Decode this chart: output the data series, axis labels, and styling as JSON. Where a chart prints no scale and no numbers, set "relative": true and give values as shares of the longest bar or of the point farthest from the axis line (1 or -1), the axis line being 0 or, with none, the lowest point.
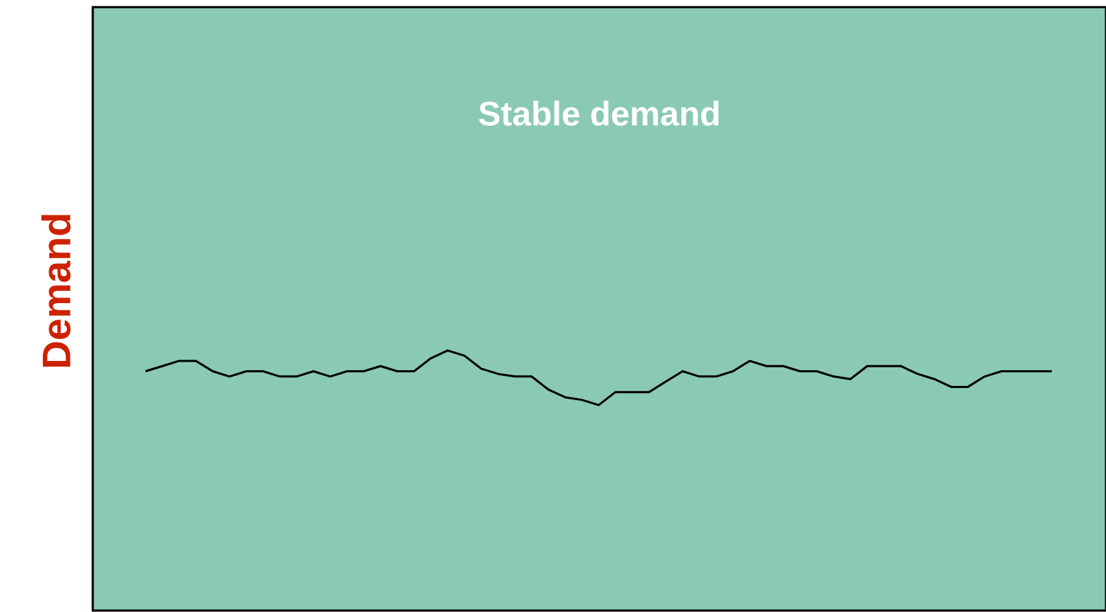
{
  "chart_data": {
    "type": "line",
    "title": "Stable demand",
    "ylabel": "Demand",
    "relative": true,
    "categories": [
      null,
      null,
      null,
      null,
      null,
      null,
      null,
      null,
      null,
      null,
      null,
      null,
      null,
      null,
      null,
      null,
      null,
      null,
      null,
      null,
      null,
      null,
      null,
      null,
      null,
      null,
      null,
      null,
      null,
      null,
      null,
      null,
      null,
      null,
      null,
      null,
      null,
      null,
      null,
      null,
      null,
      null,
      null,
      null,
      null,
      null,
      null,
      null,
      null,
      null,
      null,
      null,
      null,
      null,
      null
    ],
    "series": [
      {
        "color": "#000000",
        "values": [
          0.92,
          0.94,
          0.96,
          0.96,
          0.92,
          0.9,
          0.92,
          0.92,
          0.9,
          0.9,
          0.92,
          0.9,
          0.92,
          0.92,
          0.94,
          0.92,
          0.92,
          0.97,
          1.0,
          0.98,
          0.93,
          0.91,
          0.9,
          0.9,
          0.85,
          0.82,
          0.81,
          0.79,
          0.84,
          0.84,
          0.84,
          0.88,
          0.92,
          0.9,
          0.9,
          0.92,
          0.96,
          0.94,
          0.94,
          0.92,
          0.92,
          0.9,
          0.89,
          0.94,
          0.94,
          0.94,
          0.91,
          0.89,
          0.86,
          0.86,
          0.9,
          0.92,
          0.92,
          0.92,
          0.92
        ]
      }
    ],
    "marker": "none",
    "line_style": "solid"
  }
}
